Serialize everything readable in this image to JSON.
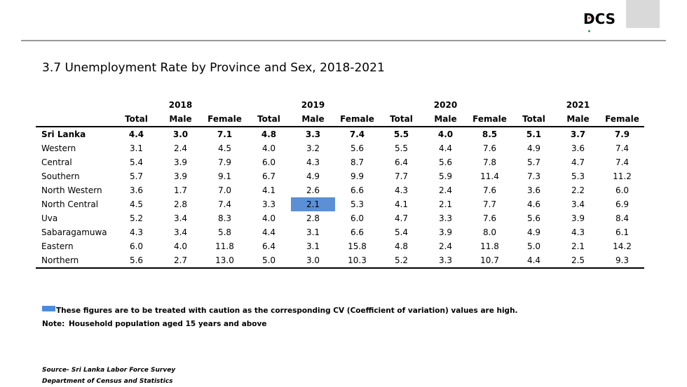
{
  "brand": {
    "logo_text": "DCS",
    "dot_colors": [
      "#e0302f",
      "#f0a30a",
      "#2f6fd6",
      "#1f9e49"
    ]
  },
  "page": {
    "title": "3.7  Unemployment Rate by Province and Sex, 2018-2021"
  },
  "table": {
    "years": [
      "2018",
      "2019",
      "2020",
      "2021"
    ],
    "subheaders": [
      "Total",
      "Male",
      "Female"
    ],
    "highlight_color": "#5b8fd6",
    "rows": [
      {
        "province": "Sri Lanka",
        "values": [
          "4.4",
          "3.0",
          "7.1",
          "4.8",
          "3.3",
          "7.4",
          "5.5",
          "4.0",
          "8.5",
          "5.1",
          "3.7",
          "7.9"
        ]
      },
      {
        "province": "Western",
        "values": [
          "3.1",
          "2.4",
          "4.5",
          "4.0",
          "3.2",
          "5.6",
          "5.5",
          "4.4",
          "7.6",
          "4.9",
          "3.6",
          "7.4"
        ]
      },
      {
        "province": "Central",
        "values": [
          "5.4",
          "3.9",
          "7.9",
          "6.0",
          "4.3",
          "8.7",
          "6.4",
          "5.6",
          "7.8",
          "5.7",
          "4.7",
          "7.4"
        ]
      },
      {
        "province": "Southern",
        "values": [
          "5.7",
          "3.9",
          "9.1",
          "6.7",
          "4.9",
          "9.9",
          "7.7",
          "5.9",
          "11.4",
          "7.3",
          "5.3",
          "11.2"
        ]
      },
      {
        "province": "North Western",
        "values": [
          "3.6",
          "1.7",
          "7.0",
          "4.1",
          "2.6",
          "6.6",
          "4.3",
          "2.4",
          "7.6",
          "3.6",
          "2.2",
          "6.0"
        ]
      },
      {
        "province": "North Central",
        "values": [
          "4.5",
          "2.8",
          "7.4",
          "3.3",
          "2.1",
          "5.3",
          "4.1",
          "2.1",
          "7.7",
          "4.6",
          "3.4",
          "6.9"
        ]
      },
      {
        "province": "Uva",
        "values": [
          "5.2",
          "3.4",
          "8.3",
          "4.0",
          "2.8",
          "6.0",
          "4.7",
          "3.3",
          "7.6",
          "5.6",
          "3.9",
          "8.4"
        ]
      },
      {
        "province": "Sabaragamuwa",
        "values": [
          "4.3",
          "3.4",
          "5.8",
          "4.4",
          "3.1",
          "6.6",
          "5.4",
          "3.9",
          "8.0",
          "4.9",
          "4.3",
          "6.1"
        ]
      },
      {
        "province": "Eastern",
        "values": [
          "6.0",
          "4.0",
          "11.8",
          "6.4",
          "3.1",
          "15.8",
          "4.8",
          "2.4",
          "11.8",
          "5.0",
          "2.1",
          "14.2"
        ]
      },
      {
        "province": "Northern",
        "values": [
          "5.6",
          "2.7",
          "13.0",
          "5.0",
          "3.0",
          "10.3",
          "5.2",
          "3.3",
          "10.7",
          "4.4",
          "2.5",
          "9.3"
        ]
      }
    ]
  },
  "legend": {
    "text": "These figures are to be treated with caution as the corresponding CV (Coefficient of variation) values are high."
  },
  "note": {
    "label": "Note:",
    "text": "Household population aged 15 years and above"
  },
  "source": {
    "line1": "Source- Sri Lanka Labor Force Survey",
    "line2": "Department of Census and Statistics"
  }
}
